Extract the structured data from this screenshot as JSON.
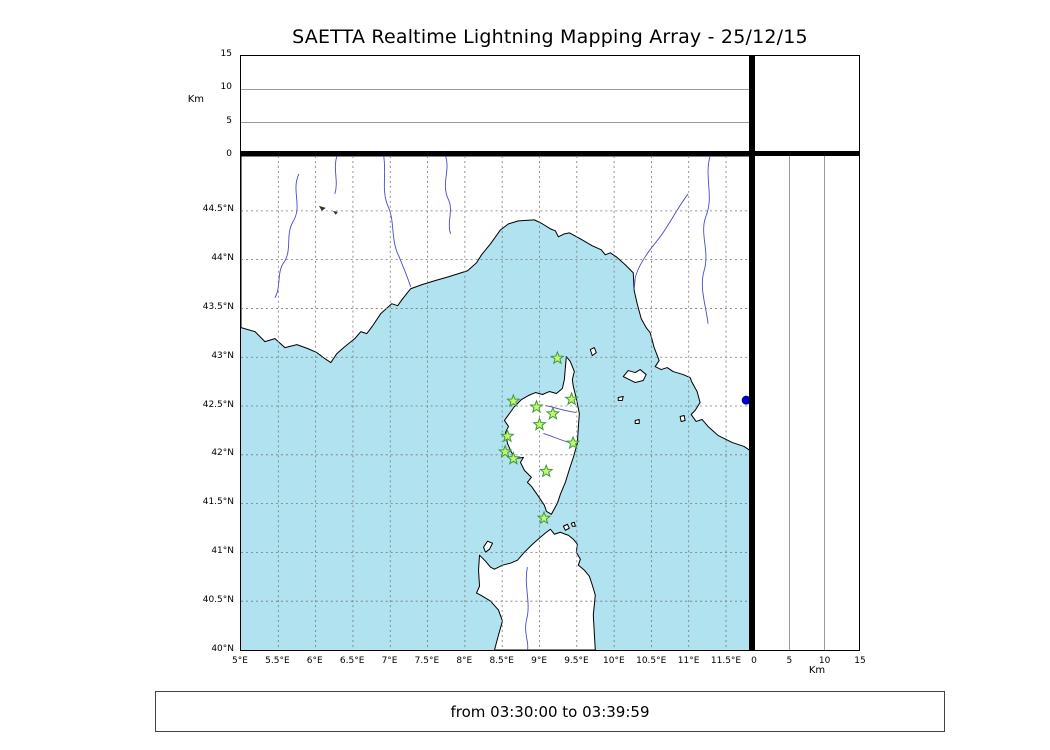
{
  "title": "SAETTA Realtime Lightning Mapping Array - 25/12/15",
  "footer": {
    "time_range": "from 03:30:00 to 03:39:59"
  },
  "axes": {
    "km_label": "Km",
    "alt_labels": [
      "0",
      "5",
      "10",
      "15"
    ],
    "lat_labels": [
      "44.5°N",
      "44°N",
      "43.5°N",
      "43°N",
      "42.5°N",
      "42°N",
      "41.5°N",
      "41°N",
      "40.5°N",
      "40°N"
    ],
    "lon_labels": [
      "5°E",
      "5.5°E",
      "6°E",
      "6.5°E",
      "7°E",
      "7.5°E",
      "8°E",
      "8.5°E",
      "9°E",
      "9.5°E",
      "10°E",
      "10.5°E",
      "11°E",
      "11.5°E"
    ]
  },
  "chart_data": {
    "type": "scatter",
    "title": "SAETTA Realtime Lightning Mapping Array - 25/12/15",
    "date": "25/12/15",
    "time_window": {
      "from": "03:30:00",
      "to": "03:39:59"
    },
    "map": {
      "lon_min_e": 5.0,
      "lon_max_e": 11.8,
      "lat_min_n": 40.0,
      "lat_max_n": 45.1,
      "grid_step_deg": 0.5,
      "region": "Corsica / NW Mediterranean"
    },
    "altitude_km": {
      "min": 0,
      "max": 15,
      "ticks": [
        0,
        5,
        10,
        15
      ],
      "unit": "Km"
    },
    "lon_ticks_deg": [
      5,
      5.5,
      6,
      6.5,
      7,
      7.5,
      8,
      8.5,
      9,
      9.5,
      10,
      10.5,
      11,
      11.5
    ],
    "lat_ticks_deg": [
      44.5,
      44,
      43.5,
      43,
      42.5,
      42,
      41.5,
      41,
      40.5,
      40
    ],
    "stations_lon_lat": [
      [
        9.24,
        42.99
      ],
      [
        8.65,
        42.55
      ],
      [
        8.96,
        42.49
      ],
      [
        9.43,
        42.57
      ],
      [
        9.18,
        42.42
      ],
      [
        9.0,
        42.31
      ],
      [
        8.57,
        42.19
      ],
      [
        9.45,
        42.12
      ],
      [
        8.54,
        42.03
      ],
      [
        8.65,
        41.96
      ],
      [
        9.09,
        41.83
      ],
      [
        9.06,
        41.35
      ]
    ],
    "points": [
      {
        "lon_e": 11.77,
        "lat_n": 42.56,
        "color": "#0000bb"
      }
    ],
    "colors": {
      "sea": "#b0e2f0",
      "land": "#ffffff",
      "coast": "#000000",
      "river": "#4a4acc",
      "station_fill": "#c9f76f",
      "station_stroke": "#3a9a3a",
      "grid": "#777777",
      "point": "#0000bb"
    }
  }
}
